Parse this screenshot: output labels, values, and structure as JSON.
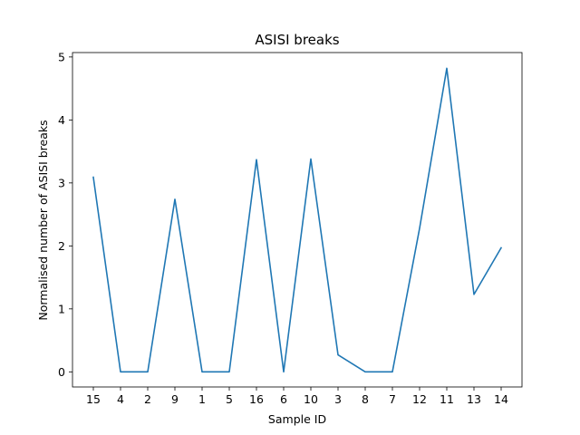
{
  "chart_data": {
    "type": "line",
    "title": "ASISI breaks",
    "xlabel": "Sample ID",
    "ylabel": "Normalised number of ASISI breaks",
    "categories": [
      "15",
      "4",
      "2",
      "9",
      "1",
      "5",
      "16",
      "6",
      "10",
      "3",
      "8",
      "7",
      "12",
      "11",
      "13",
      "14"
    ],
    "series": [
      {
        "values": [
          3.09,
          0.0,
          0.0,
          2.74,
          0.0,
          0.0,
          3.37,
          0.0,
          3.38,
          0.27,
          0.0,
          0.0,
          2.28,
          4.82,
          1.23,
          1.97
        ]
      }
    ],
    "ylim": [
      -0.24,
      5.07
    ],
    "yticks": [
      0,
      1,
      2,
      3,
      4,
      5
    ],
    "line_color": "#1f77b4",
    "grid": false,
    "legend": "none"
  }
}
